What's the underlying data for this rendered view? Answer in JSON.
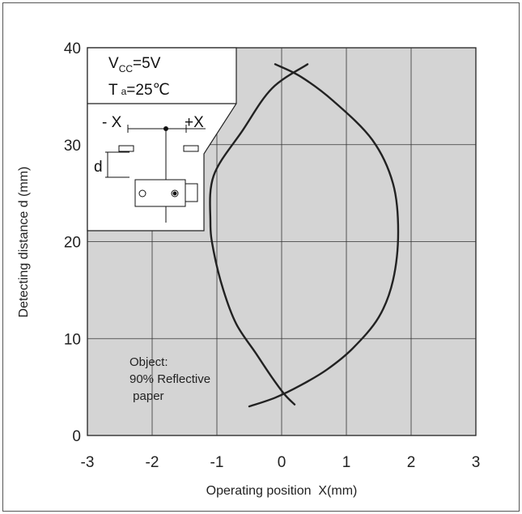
{
  "chart_data": {
    "type": "line",
    "xlabel": "Operating position  X(mm)",
    "ylabel": "Detecting distance d (mm)",
    "xlim": [
      -3,
      3
    ],
    "ylim": [
      0,
      40
    ],
    "x_ticks": [
      "-3",
      "-2",
      "-1",
      "0",
      "1",
      "2",
      "3"
    ],
    "y_ticks": [
      "0",
      "10",
      "20",
      "30",
      "40"
    ],
    "grid": true,
    "background": "#d4d4d4",
    "series": [
      {
        "points": [
          [
            0.2,
            3.2
          ],
          [
            0.05,
            4.2
          ],
          [
            -0.15,
            6
          ],
          [
            -0.4,
            8.5
          ],
          [
            -0.7,
            11.5
          ],
          [
            -0.9,
            15
          ],
          [
            -1.05,
            19
          ],
          [
            -1.1,
            22
          ],
          [
            -1.05,
            26.8
          ],
          [
            -0.6,
            31.5
          ],
          [
            -0.15,
            35.8
          ],
          [
            0.4,
            38.3
          ]
        ],
        "color": "#222222"
      },
      {
        "points": [
          [
            -0.5,
            3
          ],
          [
            -0.1,
            3.9
          ],
          [
            0.3,
            5.2
          ],
          [
            0.7,
            6.8
          ],
          [
            1.1,
            9
          ],
          [
            1.5,
            12.2
          ],
          [
            1.72,
            16
          ],
          [
            1.8,
            21
          ],
          [
            1.72,
            26
          ],
          [
            1.4,
            30.5
          ],
          [
            0.8,
            34.5
          ],
          [
            0.3,
            37
          ],
          [
            -0.1,
            38.3
          ]
        ],
        "color": "#222222"
      }
    ],
    "annotation": [
      "Object:",
      "90% Reflective",
      " paper"
    ]
  },
  "inset": {
    "vcc_label": "V",
    "vcc_sub": "CC",
    "vcc_value": "=5V",
    "ta_label": "T",
    "ta_sub": "a",
    "ta_value": "=25℃",
    "minus_x": "- X",
    "plus_x": "+X",
    "d_label": "d"
  }
}
